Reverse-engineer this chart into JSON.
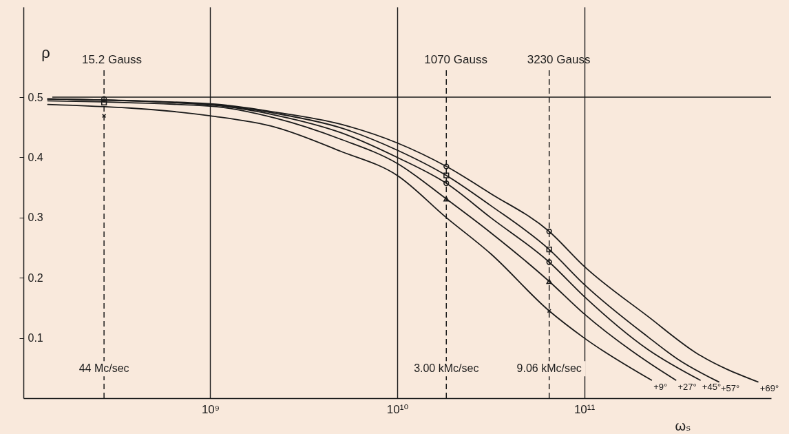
{
  "chart_data": {
    "type": "line",
    "xlabel": "ωₛ",
    "ylabel": "ρ",
    "log": "x",
    "grid": "x",
    "legend": false,
    "xlim": [
      100000000.0,
      1000000000000.0
    ],
    "xticks": [
      {
        "value": 1000000000.0,
        "label": "10⁹"
      },
      {
        "value": 10000000000.0,
        "label": "10¹⁰"
      },
      {
        "value": 100000000000.0,
        "label": "10¹¹"
      }
    ],
    "ylim": [
      0,
      0.65
    ],
    "yticks": [
      0.1,
      0.2,
      0.3,
      0.4,
      0.5
    ],
    "series": [
      {
        "name": "+69°",
        "color": "#1a1a1a",
        "x": [
          135000000.0,
          1000000000.0,
          2240000000.0,
          5000000000.0,
          10000000000.0,
          18300000000.0,
          31600000000.0,
          65000000000.0,
          100000000000.0,
          219000000000.0,
          398000000000.0,
          850000000000.0
        ],
        "values": [
          0.497,
          0.489,
          0.475,
          0.455,
          0.424,
          0.385,
          0.34,
          0.277,
          0.219,
          0.136,
          0.075,
          0.027
        ]
      },
      {
        "name": "+57°",
        "color": "#1a1a1a",
        "x": [
          135000000.0,
          1000000000.0,
          2240000000.0,
          5000000000.0,
          10000000000.0,
          18300000000.0,
          31600000000.0,
          65000000000.0,
          100000000000.0,
          219000000000.0,
          316000000000.0,
          525000000000.0
        ],
        "values": [
          0.497,
          0.488,
          0.473,
          0.449,
          0.412,
          0.37,
          0.32,
          0.247,
          0.189,
          0.102,
          0.065,
          0.027
        ]
      },
      {
        "name": "+45°",
        "color": "#1a1a1a",
        "x": [
          135000000.0,
          1000000000.0,
          2240000000.0,
          5000000000.0,
          10000000000.0,
          18300000000.0,
          31600000000.0,
          65000000000.0,
          100000000000.0,
          219000000000.0,
          417000000000.0
        ],
        "values": [
          0.497,
          0.487,
          0.47,
          0.441,
          0.4,
          0.357,
          0.3,
          0.226,
          0.169,
          0.081,
          0.03
        ]
      },
      {
        "name": "+27°",
        "color": "#1a1a1a",
        "x": [
          135000000.0,
          1000000000.0,
          2240000000.0,
          5000000000.0,
          10000000000.0,
          18300000000.0,
          31600000000.0,
          65000000000.0,
          100000000000.0,
          219000000000.0,
          309000000000.0
        ],
        "values": [
          0.494,
          0.485,
          0.465,
          0.43,
          0.39,
          0.331,
          0.275,
          0.194,
          0.14,
          0.06,
          0.03
        ]
      },
      {
        "name": "+9°",
        "color": "#1a1a1a",
        "x": [
          135000000.0,
          1000000000.0,
          2240000000.0,
          5000000000.0,
          10000000000.0,
          18300000000.0,
          31600000000.0,
          65000000000.0,
          100000000000.0,
          229000000000.0
        ],
        "values": [
          0.488,
          0.469,
          0.45,
          0.41,
          0.37,
          0.3,
          0.24,
          0.145,
          0.1,
          0.03
        ]
      },
      {
        "type": "scatter",
        "marker": "circle",
        "color": "#1a1a1a",
        "x": [
          18300000000.0,
          65000000000.0
        ],
        "values": [
          0.385,
          0.277
        ]
      },
      {
        "type": "scatter",
        "marker": "square",
        "color": "#1a1a1a",
        "x": [
          270000000.0,
          18300000000.0,
          65000000000.0
        ],
        "values": [
          0.491,
          0.37,
          0.247
        ]
      },
      {
        "type": "scatter",
        "marker": "circle",
        "color": "#1a1a1a",
        "x": [
          270000000.0,
          18300000000.0,
          65000000000.0
        ],
        "values": [
          0.497,
          0.357,
          0.226
        ]
      },
      {
        "type": "scatter",
        "marker": "triangle",
        "color": "#1a1a1a",
        "x": [
          18300000000.0,
          65000000000.0
        ],
        "values": [
          0.331,
          0.194
        ]
      },
      {
        "type": "scatter",
        "marker": "cross",
        "color": "#1a1a1a",
        "x": [
          270000000.0,
          65000000000.0
        ],
        "values": [
          0.469,
          0.145
        ]
      }
    ],
    "ref_lines": [
      {
        "axis": "y",
        "value": 0.5,
        "color": "#1a1a1a",
        "line_style": "solid"
      },
      {
        "axis": "x",
        "value": 270000000.0,
        "label": "15.2 Gauss",
        "color": "#1a1a1a",
        "line_style": "dashed"
      },
      {
        "axis": "x",
        "value": 18300000000.0,
        "label": "1070  Gauss",
        "color": "#1a1a1a",
        "line_style": "dashed"
      },
      {
        "axis": "x",
        "value": 65000000000.0,
        "label": "3230 Gauss",
        "color": "#1a1a1a",
        "line_style": "dashed"
      }
    ],
    "annotations": [
      {
        "text": "44 Mc/sec",
        "x": 270000000.0,
        "y": 0.049
      },
      {
        "text": "3.00 kMc/sec",
        "x": 18300000000.0,
        "y": 0.049
      },
      {
        "text": "9.06 kMc/sec",
        "x": 65000000000.0,
        "y": 0.049
      }
    ]
  }
}
